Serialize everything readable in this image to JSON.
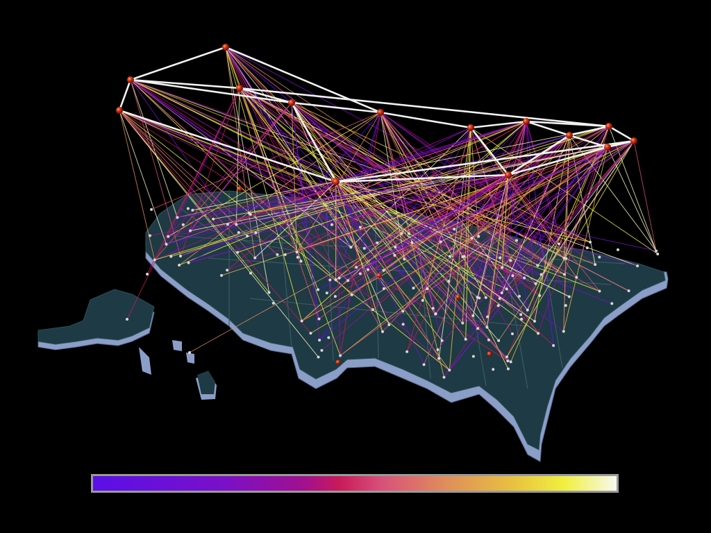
{
  "map": {
    "region": "United States",
    "colors": {
      "background": "#000000",
      "land_top": "#1e3a44",
      "land_side": "#8a9ec8",
      "backbone_link": "#f2f2f2",
      "node": "#c8280e",
      "end_point": "#d8d8d8"
    },
    "legend": {
      "gradient": [
        "#5a10e8",
        "#a01090",
        "#c81a5a",
        "#e0905a",
        "#f0f040",
        "#f8f8f0"
      ]
    }
  }
}
